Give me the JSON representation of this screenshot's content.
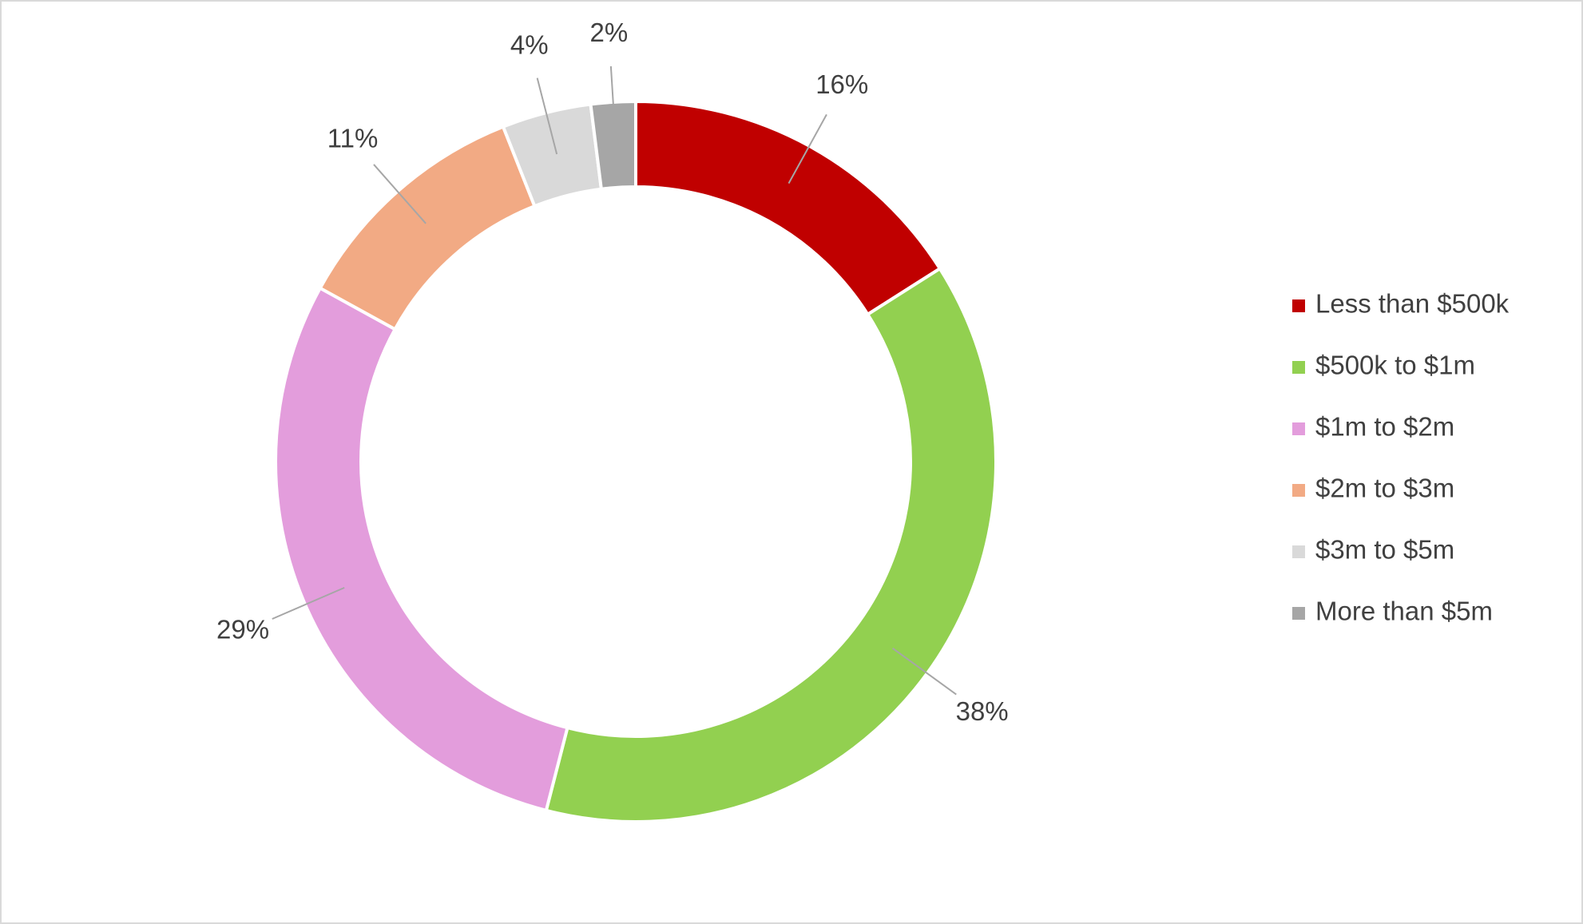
{
  "chart_data": {
    "type": "donut",
    "categories": [
      "Less than $500k",
      "$500k to $1m",
      "$1m to $2m",
      "$2m to $3m",
      "$3m to $5m",
      "More than $5m"
    ],
    "values": [
      16,
      38,
      29,
      11,
      4,
      2
    ],
    "value_labels": [
      "16%",
      "38%",
      "29%",
      "11%",
      "4%",
      "2%"
    ],
    "colors": [
      "#c00000",
      "#92d050",
      "#e39ddc",
      "#f2aa84",
      "#d9d9d9",
      "#a6a6a6"
    ],
    "legend": "right"
  }
}
